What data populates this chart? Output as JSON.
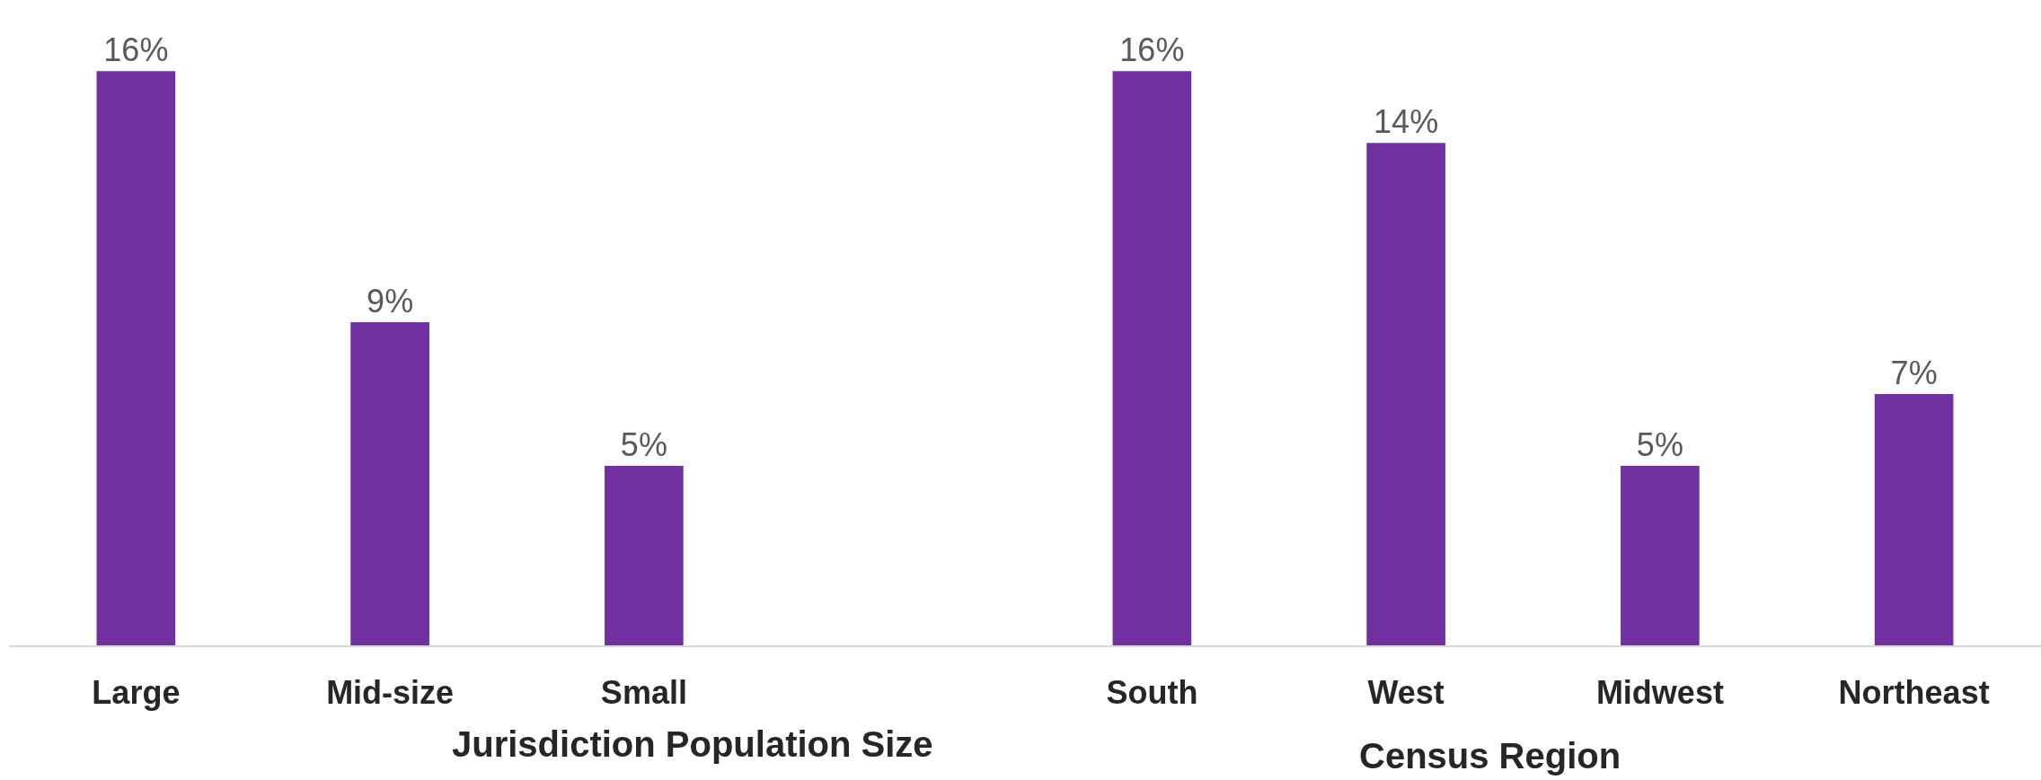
{
  "chart_data": {
    "type": "bar",
    "categories": [
      "Large",
      "Mid-size",
      "Small",
      null,
      "South",
      "West",
      "Midwest",
      "Northeast"
    ],
    "values": [
      16,
      9,
      5,
      null,
      16,
      14,
      5,
      7
    ],
    "value_labels": [
      "16%",
      "9%",
      "5%",
      null,
      "16%",
      "14%",
      "5%",
      "7%"
    ],
    "color": "#7030a0",
    "annotations": [
      "Jurisdiction Population Size",
      "Census Region"
    ]
  }
}
